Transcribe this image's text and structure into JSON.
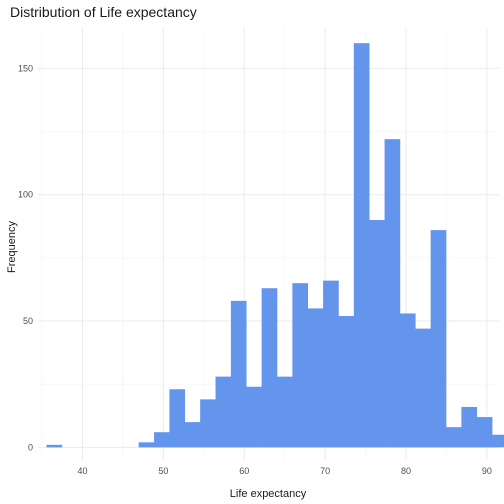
{
  "chart_data": {
    "type": "bar",
    "title": "Distribution of Life expectancy",
    "xlabel": "Life expectancy",
    "ylabel": "Frequency",
    "xlim": [
      34.5,
      91.5
    ],
    "ylim": [
      -5,
      166
    ],
    "x_ticks": [
      40,
      50,
      60,
      70,
      80,
      90
    ],
    "y_ticks": [
      0,
      50,
      100,
      150
    ],
    "bar_color": "#6495ED",
    "bin_width": 1.9,
    "bins": [
      {
        "x": 36.5,
        "count": 1
      },
      {
        "x": 38.4,
        "count": 0
      },
      {
        "x": 40.3,
        "count": 0
      },
      {
        "x": 42.2,
        "count": 0
      },
      {
        "x": 44.1,
        "count": 0
      },
      {
        "x": 46.0,
        "count": 0
      },
      {
        "x": 47.9,
        "count": 2
      },
      {
        "x": 49.8,
        "count": 6
      },
      {
        "x": 51.7,
        "count": 23
      },
      {
        "x": 53.6,
        "count": 10
      },
      {
        "x": 55.5,
        "count": 19
      },
      {
        "x": 57.4,
        "count": 28
      },
      {
        "x": 59.3,
        "count": 58
      },
      {
        "x": 61.2,
        "count": 24
      },
      {
        "x": 63.1,
        "count": 63
      },
      {
        "x": 65.0,
        "count": 28
      },
      {
        "x": 66.9,
        "count": 65
      },
      {
        "x": 68.8,
        "count": 55
      },
      {
        "x": 70.7,
        "count": 66
      },
      {
        "x": 72.6,
        "count": 52
      },
      {
        "x": 74.5,
        "count": 160
      },
      {
        "x": 76.4,
        "count": 90
      },
      {
        "x": 78.3,
        "count": 122
      },
      {
        "x": 80.2,
        "count": 53
      },
      {
        "x": 82.1,
        "count": 47
      },
      {
        "x": 84.0,
        "count": 86
      },
      {
        "x": 85.9,
        "count": 8
      },
      {
        "x": 87.8,
        "count": 16
      },
      {
        "x": 89.7,
        "count": 12
      },
      {
        "x": 91.6,
        "count": 5
      }
    ]
  }
}
